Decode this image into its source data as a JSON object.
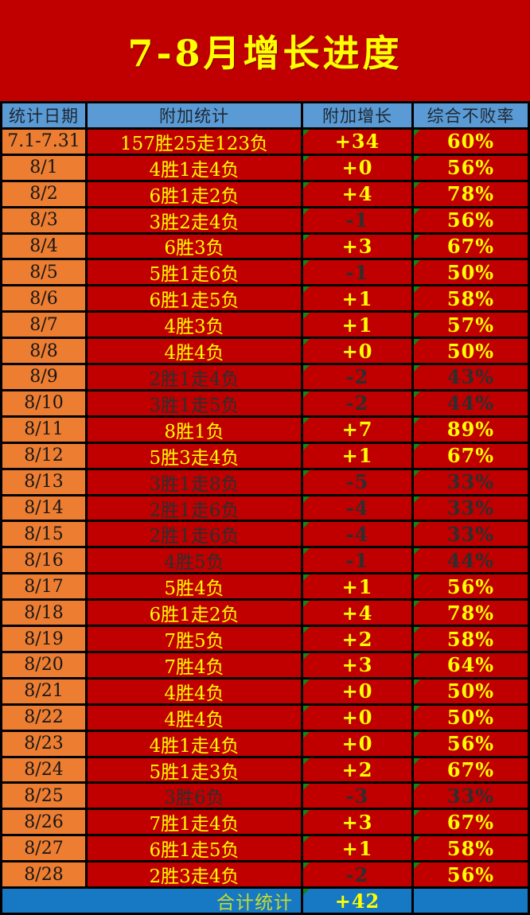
{
  "title": "7-8月增长进度",
  "colors": {
    "background_red": "#C00000",
    "header_blue": "#5B9BD5",
    "date_orange": "#ED7D31",
    "footer_blue": "#1779C4",
    "text_yellow": "#FFFF00",
    "text_dark": "#2e2e2e",
    "footer_label_yellow_green": "#C6DC2E",
    "error_triangle_green": "#158515",
    "border_black": "#000000"
  },
  "table": {
    "headers": [
      "统计日期",
      "附加统计",
      "附加增长",
      "综合不败率"
    ],
    "rows": [
      {
        "date": "7.1-7.31",
        "stats": "157胜25走123负",
        "growth": "+34",
        "rate": "60%",
        "dim": false
      },
      {
        "date": "8/1",
        "stats": "4胜1走4负",
        "growth": "+0",
        "rate": "56%",
        "dim": false
      },
      {
        "date": "8/2",
        "stats": "6胜1走2负",
        "growth": "+4",
        "rate": "78%",
        "dim": false
      },
      {
        "date": "8/3",
        "stats": "3胜2走4负",
        "growth": "-1",
        "rate": "56%",
        "dim": false
      },
      {
        "date": "8/4",
        "stats": "6胜3负",
        "growth": "+3",
        "rate": "67%",
        "dim": false
      },
      {
        "date": "8/5",
        "stats": "5胜1走6负",
        "growth": "-1",
        "rate": "50%",
        "dim": false
      },
      {
        "date": "8/6",
        "stats": "6胜1走5负",
        "growth": "+1",
        "rate": "58%",
        "dim": false
      },
      {
        "date": "8/7",
        "stats": "4胜3负",
        "growth": "+1",
        "rate": "57%",
        "dim": false
      },
      {
        "date": "8/8",
        "stats": "4胜4负",
        "growth": "+0",
        "rate": "50%",
        "dim": false
      },
      {
        "date": "8/9",
        "stats": "2胜1走4负",
        "growth": "-2",
        "rate": "43%",
        "dim": true
      },
      {
        "date": "8/10",
        "stats": "3胜1走5负",
        "growth": "-2",
        "rate": "44%",
        "dim": true
      },
      {
        "date": "8/11",
        "stats": "8胜1负",
        "growth": "+7",
        "rate": "89%",
        "dim": false
      },
      {
        "date": "8/12",
        "stats": "5胜3走4负",
        "growth": "+1",
        "rate": "67%",
        "dim": false
      },
      {
        "date": "8/13",
        "stats": "3胜1走8负",
        "growth": "-5",
        "rate": "33%",
        "dim": true
      },
      {
        "date": "8/14",
        "stats": "2胜1走6负",
        "growth": "-4",
        "rate": "33%",
        "dim": true
      },
      {
        "date": "8/15",
        "stats": "2胜1走6负",
        "growth": "-4",
        "rate": "33%",
        "dim": true
      },
      {
        "date": "8/16",
        "stats": "4胜5负",
        "growth": "-1",
        "rate": "44%",
        "dim": true
      },
      {
        "date": "8/17",
        "stats": "5胜4负",
        "growth": "+1",
        "rate": "56%",
        "dim": false
      },
      {
        "date": "8/18",
        "stats": "6胜1走2负",
        "growth": "+4",
        "rate": "78%",
        "dim": false
      },
      {
        "date": "8/19",
        "stats": "7胜5负",
        "growth": "+2",
        "rate": "58%",
        "dim": false
      },
      {
        "date": "8/20",
        "stats": "7胜4负",
        "growth": "+3",
        "rate": "64%",
        "dim": false
      },
      {
        "date": "8/21",
        "stats": "4胜4负",
        "growth": "+0",
        "rate": "50%",
        "dim": false
      },
      {
        "date": "8/22",
        "stats": "4胜4负",
        "growth": "+0",
        "rate": "50%",
        "dim": false
      },
      {
        "date": "8/23",
        "stats": "4胜1走4负",
        "growth": "+0",
        "rate": "56%",
        "dim": false
      },
      {
        "date": "8/24",
        "stats": "5胜1走3负",
        "growth": "+2",
        "rate": "67%",
        "dim": false
      },
      {
        "date": "8/25",
        "stats": "3胜6负",
        "growth": "-3",
        "rate": "33%",
        "dim": true
      },
      {
        "date": "8/26",
        "stats": "7胜1走4负",
        "growth": "+3",
        "rate": "67%",
        "dim": false
      },
      {
        "date": "8/27",
        "stats": "6胜1走5负",
        "growth": "+1",
        "rate": "58%",
        "dim": false
      },
      {
        "date": "8/28",
        "stats": "2胜3走4负",
        "growth": "-2",
        "rate": "56%",
        "dim": false
      }
    ],
    "footer": {
      "label": "合计统计",
      "total": "+42"
    }
  }
}
